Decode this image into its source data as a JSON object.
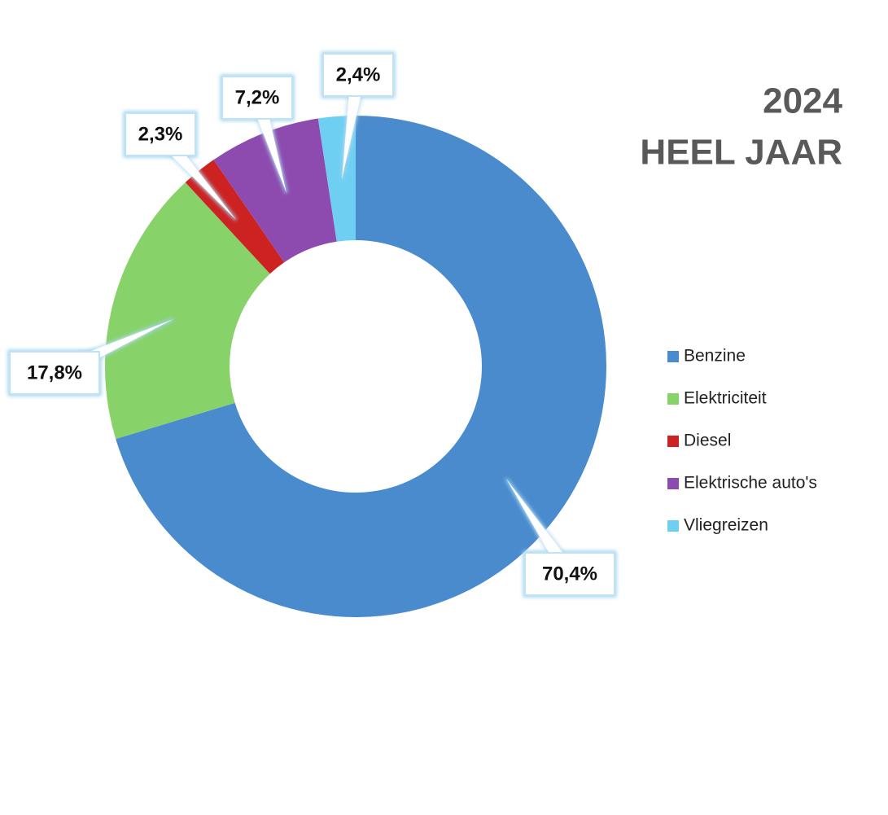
{
  "chart_data": {
    "type": "donut",
    "title": "2024",
    "subtitle": "HEEL JAAR",
    "categories": [
      "Benzine",
      "Elektriciteit",
      "Diesel",
      "Elektrische auto's",
      "Vliegreizen"
    ],
    "values": [
      70.4,
      17.8,
      2.3,
      7.2,
      2.4
    ],
    "value_labels": [
      "70,4%",
      "17,8%",
      "2,3%",
      "7,2%",
      "2,4%"
    ],
    "colors": [
      "#4a8bce",
      "#88d26a",
      "#cc2222",
      "#8e4baf",
      "#6fcff2"
    ],
    "legend": "right"
  }
}
